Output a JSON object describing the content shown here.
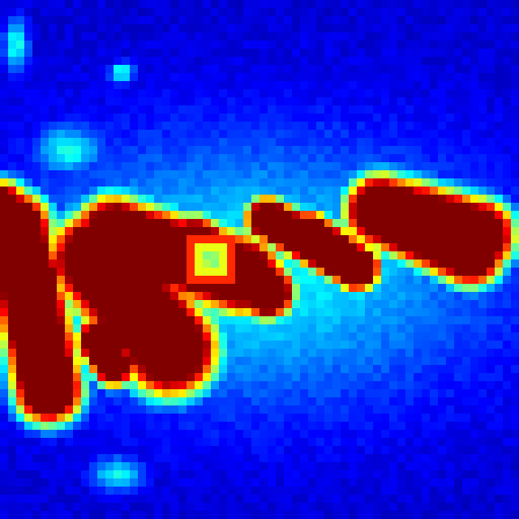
{
  "image": {
    "kind": "heatmap",
    "colormap": "jet",
    "colormap_stops": [
      "#00008f",
      "#0000ff",
      "#0080ff",
      "#00ffff",
      "#80ff80",
      "#ffff00",
      "#ff8000",
      "#ff0000",
      "#800000"
    ],
    "background_color": "#00008f",
    "hot_color": "#8b0000",
    "pixelated": true,
    "visible_text": []
  }
}
